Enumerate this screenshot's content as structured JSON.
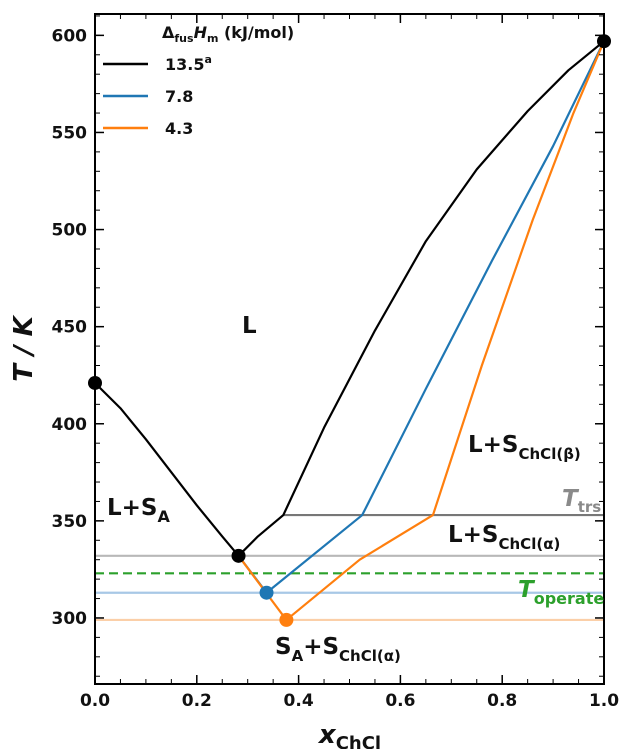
{
  "chart_data": {
    "type": "line",
    "x_axis": {
      "label_main": "x",
      "label_sub": "ChCl",
      "range": [
        0,
        1
      ],
      "ticks": [
        "0.0",
        "0.2",
        "0.4",
        "0.6",
        "0.8",
        "1.0"
      ]
    },
    "y_axis": {
      "label": "T / K",
      "range": [
        266,
        611
      ],
      "ticks": [
        "300",
        "350",
        "400",
        "450",
        "500",
        "550",
        "600"
      ]
    },
    "grid": false,
    "legend": {
      "placement": "top-left",
      "title_delta": "Δ",
      "title_sub1": "fus",
      "title_h": "H",
      "title_sub2": "m",
      "title_unit": " (kJ/mol)",
      "entries": [
        {
          "label": "13.5",
          "sup": "a",
          "color": "#000000"
        },
        {
          "label": "7.8",
          "sup": "",
          "color": "#1f77b4"
        },
        {
          "label": "4.3",
          "sup": "",
          "color": "#ff7f0e"
        }
      ]
    },
    "series": [
      {
        "key": "s135",
        "color": "#000000",
        "points": [
          [
            0.0,
            421
          ],
          [
            0.05,
            408
          ],
          [
            0.1,
            392
          ],
          [
            0.15,
            375
          ],
          [
            0.2,
            358
          ],
          [
            0.25,
            342
          ],
          [
            0.282,
            332
          ],
          [
            0.32,
            342
          ],
          [
            0.37,
            353
          ],
          [
            0.45,
            398
          ],
          [
            0.55,
            448
          ],
          [
            0.65,
            494
          ],
          [
            0.75,
            531
          ],
          [
            0.85,
            561
          ],
          [
            0.93,
            582
          ],
          [
            1.0,
            597
          ]
        ],
        "markers": [
          [
            0.0,
            421
          ],
          [
            0.282,
            332
          ],
          [
            1.0,
            597
          ]
        ]
      },
      {
        "key": "s78",
        "color": "#1f77b4",
        "points": [
          [
            0.282,
            332
          ],
          [
            0.337,
            313
          ],
          [
            0.525,
            353
          ],
          [
            0.65,
            418
          ],
          [
            0.78,
            484
          ],
          [
            0.9,
            543
          ],
          [
            1.0,
            597
          ]
        ],
        "markers": [
          [
            0.337,
            313
          ]
        ]
      },
      {
        "key": "s43",
        "color": "#ff7f0e",
        "points": [
          [
            0.282,
            332
          ],
          [
            0.376,
            299
          ],
          [
            0.52,
            330
          ],
          [
            0.664,
            353
          ],
          [
            0.76,
            430
          ],
          [
            0.86,
            505
          ],
          [
            0.94,
            560
          ],
          [
            1.0,
            597
          ]
        ],
        "markers": [
          [
            0.376,
            299
          ]
        ]
      }
    ],
    "horizontal_lines": [
      {
        "key": "ttrs",
        "y": 353,
        "x_from": 0.37,
        "x_to": 1.0,
        "color": "#777777",
        "dashed": false
      },
      {
        "key": "t-alpha",
        "y": 332,
        "x_from": 0.0,
        "x_to": 1.0,
        "color": "#b8b8b8",
        "dashed": false
      },
      {
        "key": "toperate",
        "y": 323,
        "x_from": 0.0,
        "x_to": 1.0,
        "color": "#2ca02c",
        "dashed": true
      },
      {
        "key": "blue-eutectic",
        "y": 313,
        "x_from": 0.0,
        "x_to": 1.0,
        "color": "#a8c8e6",
        "dashed": false
      },
      {
        "key": "orange-eutectic",
        "y": 299,
        "x_from": 0.0,
        "x_to": 1.0,
        "color": "#fbcfa8",
        "dashed": false
      }
    ],
    "annotations": {
      "ttrs": {
        "main": "T",
        "sub": "trs",
        "color": "#8a8a8a"
      },
      "toperate": {
        "main": "T",
        "sub": "operate",
        "color": "#2ca02c"
      },
      "regions": {
        "liquid": "L",
        "l_sa_main": "L+S",
        "l_sa_sub": "A",
        "l_beta_main": "L+S",
        "l_beta_sub": "ChCl(β)",
        "l_alpha_main": "L+S",
        "l_alpha_sub": "ChCl(α)",
        "sa_alpha_main": "S",
        "sa_alpha_sub": "A",
        "sa_alpha_mid": "+S",
        "sa_alpha_sub2": "ChCl(α)"
      }
    }
  }
}
